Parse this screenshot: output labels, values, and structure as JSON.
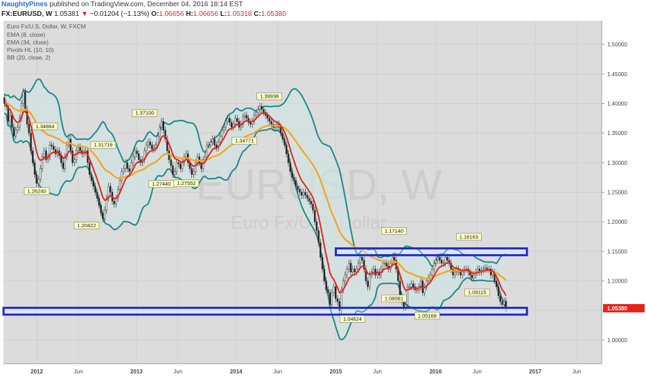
{
  "header": {
    "author": "NaughtyPines",
    "published_text": "published on TradingView.com, December 04, 2016 18:14 EST"
  },
  "symbol_bar": {
    "symbol": "FX:EURUSD, W",
    "last": "1.05381",
    "change_arrow": "▼",
    "change": "−0.01204 (−1.13%)",
    "o_label": "O:",
    "o": "1.06656",
    "h_label": "H:",
    "h": "1.06656",
    "l_label": "L:",
    "l": "1.05318",
    "c_label": "C:",
    "c": "1.05380"
  },
  "legend": {
    "title": "Euro Fx/U.S. Dollar, W, FXCM",
    "items": [
      "EMA (8, close)",
      "EMA (34, close)",
      "Pivots HL (10, 10)",
      "BB (20, close, 2)"
    ]
  },
  "watermark": {
    "line1": "EURUSD, W",
    "line2": "Euro Fx/U.S. Dollar"
  },
  "colors": {
    "background": "#dcdcdc",
    "ema_fast": "#e8231a",
    "ema_slow": "#f5a623",
    "bollinger": "#1e8a8a",
    "bollinger_fill": "#cfe3e3",
    "box": "#1a2bd8",
    "up_candle": "#f4f4f4",
    "down_candle": "#222222",
    "price_tag": "#e8231a",
    "pivot_label_bg": "#fdfdc0"
  },
  "chart_data": {
    "type": "candlestick",
    "x_axis": {
      "labels": [
        "2012",
        "Jun",
        "2013",
        "Jun",
        "2014",
        "Jun",
        "2015",
        "Jun",
        "2016",
        "Jun",
        "2017",
        "Jun"
      ],
      "range": [
        "2011-09",
        "2017-09"
      ]
    },
    "y_axis": {
      "ticks": [
        "1.00000",
        "1.05000",
        "1.10000",
        "1.15000",
        "1.20000",
        "1.25000",
        "1.30000",
        "1.35000",
        "1.40000",
        "1.45000",
        "1.50000"
      ],
      "range": [
        0.96,
        1.54
      ]
    },
    "last_price_tag": "1.05380",
    "weekly_close": [
      1.4,
      1.395,
      1.37,
      1.38,
      1.36,
      1.345,
      1.355,
      1.36,
      1.375,
      1.4,
      1.42,
      1.39,
      1.365,
      1.35,
      1.32,
      1.3,
      1.28,
      1.265,
      1.272,
      1.29,
      1.31,
      1.32,
      1.305,
      1.31,
      1.33,
      1.328,
      1.322,
      1.315,
      1.32,
      1.312,
      1.3,
      1.29,
      1.31,
      1.33,
      1.34,
      1.32,
      1.3,
      1.305,
      1.32,
      1.326,
      1.32,
      1.315,
      1.318,
      1.32,
      1.3,
      1.28,
      1.27,
      1.26,
      1.25,
      1.24,
      1.228,
      1.215,
      1.205,
      1.22,
      1.24,
      1.26,
      1.25,
      1.235,
      1.23,
      1.24,
      1.255,
      1.27,
      1.285,
      1.29,
      1.3,
      1.29,
      1.285,
      1.3,
      1.31,
      1.32,
      1.315,
      1.305,
      1.3,
      1.305,
      1.32,
      1.33,
      1.335,
      1.33,
      1.323,
      1.325,
      1.33,
      1.345,
      1.36,
      1.37,
      1.355,
      1.34,
      1.32,
      1.305,
      1.295,
      1.28,
      1.285,
      1.3,
      1.298,
      1.29,
      1.3,
      1.31,
      1.315,
      1.3,
      1.29,
      1.28,
      1.285,
      1.3,
      1.31,
      1.3,
      1.29,
      1.305,
      1.31,
      1.33,
      1.33,
      1.335,
      1.34,
      1.33,
      1.325,
      1.335,
      1.345,
      1.355,
      1.36,
      1.37,
      1.375,
      1.368,
      1.36,
      1.365,
      1.375,
      1.37,
      1.36,
      1.365,
      1.378,
      1.38,
      1.375,
      1.368,
      1.365,
      1.37,
      1.38,
      1.385,
      1.39,
      1.395,
      1.39,
      1.385,
      1.38,
      1.375,
      1.37,
      1.365,
      1.36,
      1.36,
      1.365,
      1.36,
      1.35,
      1.34,
      1.33,
      1.315,
      1.3,
      1.285,
      1.275,
      1.27,
      1.26,
      1.255,
      1.25,
      1.245,
      1.25,
      1.245,
      1.24,
      1.235,
      1.23,
      1.22,
      1.2,
      1.185,
      1.165,
      1.14,
      1.12,
      1.1,
      1.085,
      1.08,
      1.06,
      1.08,
      1.09,
      1.07,
      1.065,
      1.05,
      1.085,
      1.1,
      1.11,
      1.12,
      1.13,
      1.115,
      1.12,
      1.115,
      1.12,
      1.13,
      1.14,
      1.135,
      1.12,
      1.1,
      1.09,
      1.11,
      1.115,
      1.12,
      1.11,
      1.115,
      1.11,
      1.12,
      1.13,
      1.13,
      1.125,
      1.12,
      1.13,
      1.14,
      1.135,
      1.12,
      1.1,
      1.075,
      1.065,
      1.055,
      1.06,
      1.09,
      1.09,
      1.095,
      1.09,
      1.085,
      1.085,
      1.09,
      1.1,
      1.08,
      1.09,
      1.1,
      1.105,
      1.11,
      1.12,
      1.13,
      1.135,
      1.14,
      1.135,
      1.13,
      1.13,
      1.14,
      1.135,
      1.13,
      1.12,
      1.11,
      1.115,
      1.12,
      1.115,
      1.11,
      1.115,
      1.12,
      1.12,
      1.115,
      1.11,
      1.105,
      1.11,
      1.115,
      1.12,
      1.115,
      1.118,
      1.12,
      1.122,
      1.12,
      1.12,
      1.11,
      1.115,
      1.1,
      1.09,
      1.075,
      1.065,
      1.06,
      1.066,
      1.0538
    ],
    "series": [
      {
        "name": "EMA (8, close)",
        "kind": "line",
        "color": "#e8231a"
      },
      {
        "name": "EMA (34, close)",
        "kind": "line",
        "color": "#f5a623"
      },
      {
        "name": "BB (20, close, 2)",
        "kind": "band",
        "color": "#1e8a8a"
      }
    ],
    "pivots": [
      {
        "label": "1.26240",
        "value": 1.2624,
        "type": "low",
        "x": "2012-01"
      },
      {
        "label": "1.34864",
        "value": 1.34864,
        "type": "high",
        "x": "2012-02"
      },
      {
        "label": "1.20422",
        "value": 1.20422,
        "type": "low",
        "x": "2012-07"
      },
      {
        "label": "1.31716",
        "value": 1.31716,
        "type": "high",
        "x": "2012-09"
      },
      {
        "label": "1.37100",
        "value": 1.371,
        "type": "high",
        "x": "2013-02"
      },
      {
        "label": "1.27440",
        "value": 1.2744,
        "type": "low",
        "x": "2013-04"
      },
      {
        "label": "1.27552",
        "value": 1.27552,
        "type": "low",
        "x": "2013-07"
      },
      {
        "label": "1.34771",
        "value": 1.34771,
        "type": "low",
        "x": "2014-02"
      },
      {
        "label": "1.39938",
        "value": 1.39938,
        "type": "high",
        "x": "2014-05"
      },
      {
        "label": "1.04624",
        "value": 1.04624,
        "type": "low",
        "x": "2015-03"
      },
      {
        "label": "1.17140",
        "value": 1.1714,
        "type": "high",
        "x": "2015-08"
      },
      {
        "label": "1.08081",
        "value": 1.08081,
        "type": "low",
        "x": "2015-08"
      },
      {
        "label": "1.05168",
        "value": 1.05168,
        "type": "low",
        "x": "2015-12"
      },
      {
        "label": "1.16163",
        "value": 1.16163,
        "type": "high",
        "x": "2016-05"
      },
      {
        "label": "1.09115",
        "value": 1.09115,
        "type": "low",
        "x": "2016-06"
      }
    ],
    "boxes": [
      {
        "from_x": "2015-01",
        "to_x": "2016-12",
        "y_low": 1.1435,
        "y_high": 1.155
      },
      {
        "from_x": "2011-09",
        "to_x": "2016-12",
        "y_low": 1.043,
        "y_high": 1.0545
      }
    ]
  }
}
